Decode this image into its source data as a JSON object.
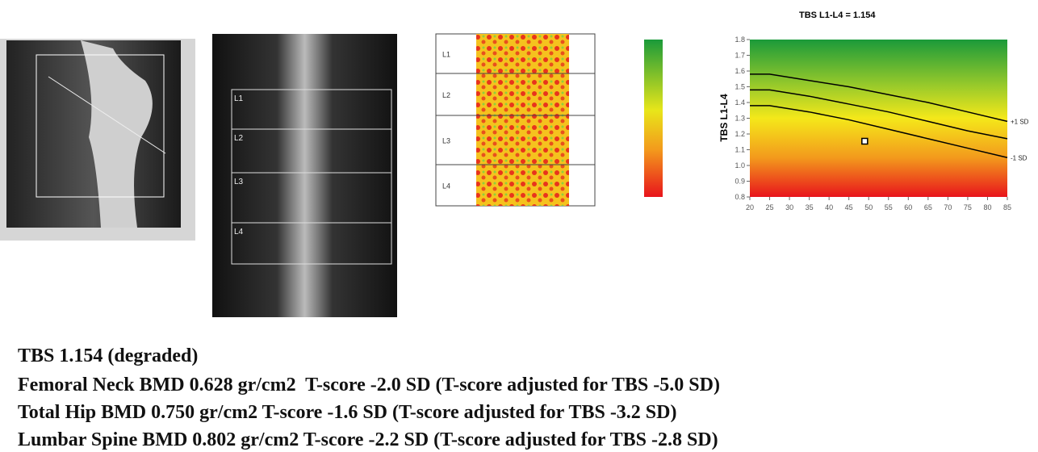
{
  "spine_image": {
    "labels": [
      "L1",
      "L2",
      "L3",
      "L4"
    ]
  },
  "tbs_map": {
    "labels": [
      "L1",
      "L2",
      "L3",
      "L4"
    ]
  },
  "chart_data": {
    "type": "line",
    "title": "TBS L1-L4 = 1.154",
    "y_label": "TBS L1-L4",
    "x": [
      20,
      25,
      35,
      45,
      55,
      65,
      75,
      85
    ],
    "series": [
      {
        "name": "+1 SD",
        "color": "#000000",
        "values": [
          1.58,
          1.58,
          1.54,
          1.5,
          1.45,
          1.4,
          1.34,
          1.28
        ]
      },
      {
        "color": "#000000",
        "values": [
          1.48,
          1.48,
          1.44,
          1.39,
          1.34,
          1.28,
          1.22,
          1.17
        ]
      },
      {
        "name": "-1 SD",
        "color": "#000000",
        "values": [
          1.38,
          1.38,
          1.34,
          1.29,
          1.23,
          1.17,
          1.11,
          1.05
        ]
      }
    ],
    "point": {
      "x": 49,
      "y": 1.154
    },
    "xlim": [
      20,
      85
    ],
    "ylim": [
      0.8,
      1.8
    ],
    "xticks": [
      20,
      25,
      30,
      35,
      40,
      45,
      50,
      55,
      60,
      65,
      70,
      75,
      80,
      85
    ],
    "yticks": [
      0.8,
      0.9,
      {
        "value": 1,
        "label": "1.0"
      },
      1.1,
      1.2,
      1.3,
      1.4,
      1.5,
      1.6,
      1.7,
      1.8
    ]
  },
  "report": [
    "TBS 1.154 (degraded)",
    "Femoral Neck BMD 0.628 gr/cm2  T-score -2.0 SD (T-score adjusted for TBS -5.0 SD)",
    "Total Hip BMD 0.750 gr/cm2 T-score -1.6 SD (T-score adjusted for TBS -3.2 SD)",
    "Lumbar Spine BMD 0.802 gr/cm2 T-score -2.2 SD (T-score adjusted for TBS -2.8 SD)"
  ]
}
